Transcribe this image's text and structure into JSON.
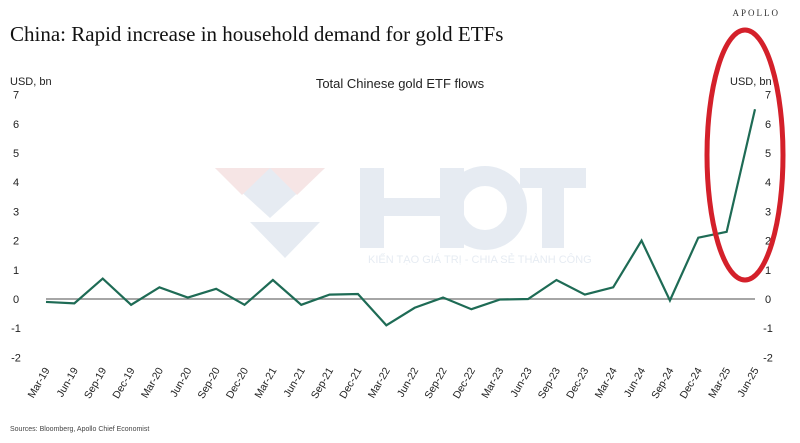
{
  "brand": "APOLLO",
  "title": "China: Rapid increase in household demand for gold ETFs",
  "source": "Sources: Bloomberg, Apollo Chief Economist",
  "chart_data": {
    "type": "line",
    "title": "Total Chinese gold ETF flows",
    "ylabel_left": "USD, bn",
    "ylabel_right": "USD, bn",
    "ylim": [
      -2,
      7
    ],
    "yticks": [
      -2,
      -1,
      0,
      1,
      2,
      3,
      4,
      5,
      6,
      7
    ],
    "line_color": "#1e6b55",
    "annotation": "red ellipse highlighting Mar-25 to Jun-25 surge",
    "categories": [
      "Mar-19",
      "Jun-19",
      "Sep-19",
      "Dec-19",
      "Mar-20",
      "Jun-20",
      "Sep-20",
      "Dec-20",
      "Mar-21",
      "Jun-21",
      "Sep-21",
      "Dec-21",
      "Mar-22",
      "Jun-22",
      "Sep-22",
      "Dec-22",
      "Mar-23",
      "Jun-23",
      "Sep-23",
      "Dec-23",
      "Mar-24",
      "Jun-24",
      "Sep-24",
      "Dec-24",
      "Mar-25",
      "Jun-25"
    ],
    "series": [
      {
        "name": "Total Chinese gold ETF flows",
        "values": [
          -0.1,
          -0.15,
          0.7,
          -0.2,
          0.4,
          0.05,
          0.35,
          -0.2,
          0.65,
          -0.2,
          0.15,
          0.17,
          -0.9,
          -0.3,
          0.05,
          -0.35,
          -0.02,
          0,
          0.65,
          0.15,
          0.4,
          2.0,
          -0.05,
          2.1,
          2.3,
          6.5
        ]
      }
    ]
  },
  "watermark": {
    "logo": "HCT",
    "tagline": "KIẾN TẠO GIÁ TRỊ - CHIA SẺ THÀNH CÔNG"
  }
}
